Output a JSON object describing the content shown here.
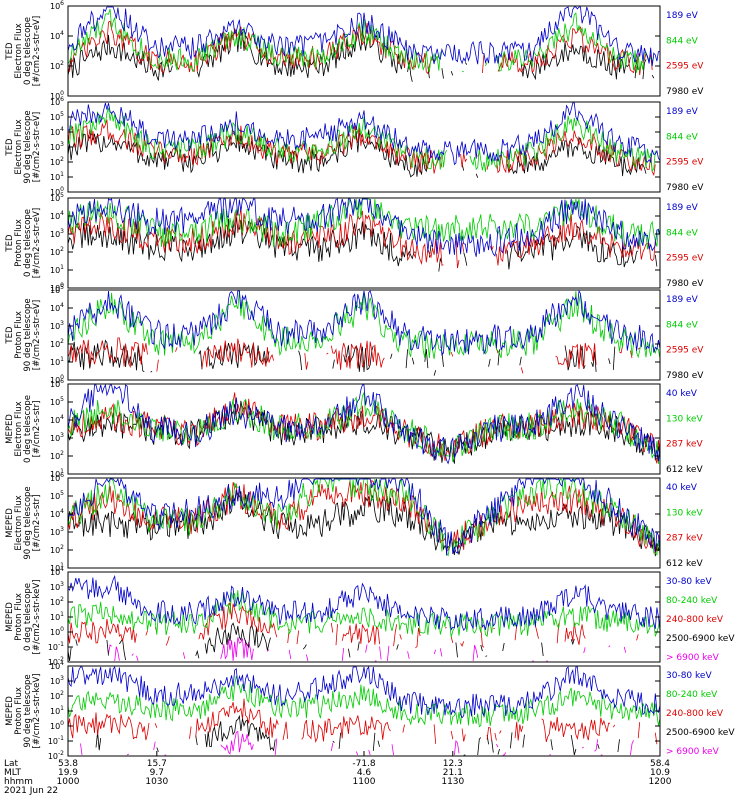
{
  "chart_data": {
    "type": "line",
    "date_label": "2021 Jun 22",
    "panels": [
      {
        "id": "ted-electron-0",
        "ylabel": [
          "TED",
          "Electron Flux",
          "0 deg telescope",
          "[#/cm2-s-str-eV]"
        ],
        "ylim_exp": [
          0,
          6
        ],
        "tick_exps": [
          0,
          2,
          4,
          6
        ],
        "log": true,
        "series": [
          {
            "name": "7980 eV",
            "color": "#000000",
            "base": 1.5,
            "activity": [
              0.3,
              2.2,
              0.4,
              0.3,
              2.6,
              0.5,
              0.6,
              2.8,
              0.3,
              0.2,
              0.2,
              0.4,
              2.0,
              0.4,
              0.2
            ]
          },
          {
            "name": "2595 eV",
            "color": "#dd0000",
            "base": 1.8,
            "activity": [
              0.5,
              2.9,
              0.6,
              0.6,
              2.6,
              0.8,
              0.9,
              2.9,
              0.5,
              0.3,
              0.3,
              0.6,
              2.6,
              0.6,
              0.3
            ]
          },
          {
            "name": "844 eV",
            "color": "#00cc00",
            "base": 1.9,
            "activity": [
              0.8,
              3.8,
              0.7,
              0.6,
              2.6,
              0.8,
              0.9,
              2.9,
              0.6,
              0.3,
              0.3,
              0.7,
              3.4,
              0.6,
              0.3
            ]
          },
          {
            "name": "189 eV",
            "color": "#0000cc",
            "base": 2.2,
            "activity": [
              1.4,
              4.6,
              1.2,
              1.2,
              2.9,
              1.3,
              1.5,
              3.3,
              1.0,
              0.6,
              0.8,
              1.0,
              4.6,
              1.0,
              0.5
            ]
          }
        ]
      },
      {
        "id": "ted-electron-90",
        "ylabel": [
          "TED",
          "Electron Flux",
          "90 deg telescope",
          "[#/cm2-s-str-eV]"
        ],
        "ylim_exp": [
          0,
          6
        ],
        "tick_exps": [
          0,
          1,
          2,
          3,
          4,
          5,
          6
        ],
        "log": true,
        "series": [
          {
            "name": "7980 eV",
            "color": "#000000",
            "base": 1.3,
            "activity": [
              1.8,
              2.6,
              1.0,
              0.9,
              2.4,
              0.8,
              0.9,
              2.7,
              0.5,
              0.2,
              0.2,
              0.6,
              2.2,
              0.7,
              0.2
            ]
          },
          {
            "name": "2595 eV",
            "color": "#dd0000",
            "base": 1.6,
            "activity": [
              2.2,
              3.0,
              1.2,
              1.1,
              2.6,
              1.0,
              1.1,
              2.8,
              0.7,
              0.3,
              0.3,
              0.8,
              2.7,
              0.9,
              0.3
            ]
          },
          {
            "name": "844 eV",
            "color": "#00cc00",
            "base": 1.8,
            "activity": [
              2.4,
              3.8,
              1.3,
              1.2,
              2.6,
              1.1,
              1.2,
              2.9,
              0.8,
              0.3,
              0.4,
              0.9,
              3.4,
              0.9,
              0.3
            ]
          },
          {
            "name": "189 eV",
            "color": "#0000cc",
            "base": 2.1,
            "activity": [
              2.8,
              4.2,
              1.8,
              1.6,
              3.0,
              1.6,
              1.9,
              3.3,
              1.2,
              0.6,
              0.8,
              1.2,
              4.2,
              1.2,
              0.5
            ]
          }
        ]
      },
      {
        "id": "ted-proton-0",
        "ylabel": [
          "TED",
          "Proton Flux",
          "0 deg telescope",
          "[#/cm2-s-str-eV]"
        ],
        "ylim_exp": [
          0,
          5
        ],
        "tick_exps": [
          0,
          1,
          2,
          3,
          4,
          5
        ],
        "log": true,
        "series": [
          {
            "name": "7980 eV",
            "color": "#000000",
            "base": 1.4,
            "activity": [
              1.6,
              1.8,
              1.0,
              1.0,
              2.2,
              1.0,
              1.0,
              2.0,
              0.4,
              0.2,
              0.2,
              0.6,
              1.6,
              0.5,
              0.2
            ]
          },
          {
            "name": "2595 eV",
            "color": "#dd0000",
            "base": 1.6,
            "activity": [
              1.9,
              2.2,
              1.3,
              1.2,
              2.6,
              1.2,
              1.3,
              2.4,
              0.6,
              0.3,
              0.3,
              0.8,
              2.2,
              0.7,
              0.3
            ]
          },
          {
            "name": "844 eV",
            "color": "#00cc00",
            "base": 1.8,
            "activity": [
              2.2,
              3.0,
              1.5,
              1.3,
              2.6,
              1.3,
              2.2,
              3.5,
              1.8,
              1.7,
              1.8,
              2.0,
              3.2,
              1.6,
              1.2
            ]
          },
          {
            "name": "189 eV",
            "color": "#0000cc",
            "base": 2.0,
            "activity": [
              2.5,
              3.0,
              2.0,
              2.0,
              3.3,
              2.0,
              2.2,
              3.6,
              1.0,
              0.6,
              0.6,
              1.2,
              3.1,
              1.2,
              0.6
            ]
          }
        ]
      },
      {
        "id": "ted-proton-90",
        "ylabel": [
          "TED",
          "Proton Flux",
          "90 deg telescope",
          "[#/cm2-s-str-eV]"
        ],
        "ylim_exp": [
          0,
          5
        ],
        "tick_exps": [
          0,
          1,
          2,
          3,
          4,
          5
        ],
        "log": true,
        "series": [
          {
            "name": "7980 eV",
            "color": "#000000",
            "base": 0.9,
            "activity": [
              0.5,
              0.6,
              0.3,
              0.3,
              0.5,
              0.3,
              0.3,
              0.4,
              0.2,
              0.1,
              0.1,
              0.2,
              0.4,
              0.2,
              0.1
            ]
          },
          {
            "name": "2595 eV",
            "color": "#dd0000",
            "base": 1.0,
            "activity": [
              0.6,
              0.8,
              0.3,
              0.3,
              0.6,
              0.3,
              0.3,
              0.5,
              0.2,
              0.1,
              0.1,
              0.2,
              0.5,
              0.2,
              0.1
            ]
          },
          {
            "name": "844 eV",
            "color": "#00cc00",
            "base": 1.3,
            "activity": [
              1.0,
              3.6,
              1.0,
              1.0,
              3.6,
              1.0,
              1.2,
              3.3,
              0.8,
              0.6,
              0.8,
              1.0,
              3.4,
              1.0,
              0.6
            ]
          },
          {
            "name": "189 eV",
            "color": "#0000cc",
            "base": 1.5,
            "activity": [
              1.2,
              3.6,
              1.2,
              1.2,
              3.6,
              1.2,
              1.4,
              3.6,
              1.0,
              0.7,
              0.9,
              1.2,
              3.6,
              1.2,
              0.7
            ]
          }
        ]
      },
      {
        "id": "meped-electron-0",
        "ylabel": [
          "MEPED",
          "Electron Flux",
          "0 deg telescope",
          "[#/cm2-s-str]"
        ],
        "ylim_exp": [
          1,
          6
        ],
        "tick_exps": [
          1,
          2,
          3,
          4,
          5,
          6
        ],
        "log": true,
        "series": [
          {
            "name": "612 keV",
            "color": "#000000",
            "base": 1.8,
            "activity": [
              2.0,
              2.2,
              1.9,
              1.6,
              3.2,
              1.8,
              2.0,
              2.4,
              1.6,
              0.4,
              1.8,
              2.0,
              2.4,
              2.0,
              0.4
            ]
          },
          {
            "name": "287 keV",
            "color": "#dd0000",
            "base": 1.9,
            "activity": [
              2.1,
              2.6,
              2.0,
              1.6,
              3.5,
              1.9,
              2.1,
              2.8,
              1.7,
              0.4,
              1.9,
              2.1,
              2.8,
              2.1,
              0.4
            ]
          },
          {
            "name": "130 keV",
            "color": "#00cc00",
            "base": 1.9,
            "activity": [
              2.1,
              3.2,
              2.0,
              1.6,
              3.3,
              1.9,
              2.1,
              3.4,
              1.8,
              0.4,
              1.9,
              2.1,
              3.4,
              2.2,
              0.4
            ]
          },
          {
            "name": "40 keV",
            "color": "#0000cc",
            "base": 1.8,
            "activity": [
              2.2,
              5.4,
              2.0,
              1.7,
              3.2,
              2.0,
              2.2,
              4.3,
              1.8,
              0.4,
              2.0,
              2.2,
              4.4,
              2.2,
              0.4
            ]
          }
        ]
      },
      {
        "id": "meped-electron-90",
        "ylabel": [
          "MEPED",
          "Electron Flux",
          "90 deg telescope",
          "[#/cm2-s-str]"
        ],
        "ylim_exp": [
          1,
          6
        ],
        "tick_exps": [
          1,
          2,
          3,
          4,
          5,
          6
        ],
        "log": true,
        "series": [
          {
            "name": "612 keV",
            "color": "#000000",
            "base": 1.8,
            "activity": [
              2.0,
              2.0,
              1.8,
              1.8,
              3.4,
              1.8,
              2.0,
              3.0,
              2.6,
              0.4,
              2.0,
              2.2,
              2.6,
              2.0,
              0.4
            ]
          },
          {
            "name": "287 keV",
            "color": "#dd0000",
            "base": 1.9,
            "activity": [
              2.2,
              3.4,
              2.0,
              2.0,
              3.8,
              2.0,
              3.6,
              3.8,
              3.4,
              0.4,
              2.2,
              3.4,
              3.4,
              2.2,
              0.4
            ]
          },
          {
            "name": "130 keV",
            "color": "#00cc00",
            "base": 1.9,
            "activity": [
              2.2,
              4.0,
              2.0,
              2.0,
              3.8,
              2.2,
              4.6,
              4.4,
              3.8,
              0.4,
              2.2,
              4.0,
              4.0,
              2.4,
              0.4
            ]
          },
          {
            "name": "40 keV",
            "color": "#0000cc",
            "base": 1.9,
            "activity": [
              2.4,
              5.2,
              2.2,
              2.6,
              3.8,
              3.4,
              5.6,
              5.2,
              4.6,
              0.4,
              2.4,
              5.2,
              5.2,
              2.8,
              0.4
            ]
          }
        ]
      },
      {
        "id": "meped-proton-0",
        "ylabel": [
          "MEPED",
          "Proton Flux",
          "0 deg telescope",
          "[#/cm2-s-str-keV]"
        ],
        "ylim_exp": [
          -2,
          4
        ],
        "tick_exps": [
          -2,
          -1,
          0,
          1,
          2,
          3,
          4
        ],
        "log": true,
        "series": [
          {
            "name": "> 6900 keV",
            "color": "#ee00ee",
            "base": -1.6,
            "activity": [
              0.0,
              0.0,
              0.0,
              0.0,
              0.6,
              0.0,
              0.0,
              0.0,
              0.0,
              0.0,
              0.0,
              0.0,
              0.0,
              0.0,
              0.0
            ]
          },
          {
            "name": "2500-6900 keV",
            "color": "#000000",
            "base": -1.2,
            "activity": [
              0.0,
              0.0,
              0.0,
              0.0,
              1.6,
              0.0,
              0.0,
              0.0,
              0.0,
              0.0,
              0.0,
              0.0,
              0.0,
              0.0,
              0.0
            ]
          },
          {
            "name": "240-800 keV",
            "color": "#dd0000",
            "base": -0.4,
            "activity": [
              0.4,
              0.6,
              0.2,
              0.2,
              2.2,
              0.2,
              0.2,
              0.5,
              0.1,
              0.1,
              0.1,
              0.2,
              0.4,
              0.2,
              0.1
            ]
          },
          {
            "name": "80-240 keV",
            "color": "#00cc00",
            "base": 0.1,
            "activity": [
              1.0,
              1.4,
              0.6,
              0.5,
              2.3,
              0.5,
              0.6,
              1.2,
              0.5,
              0.4,
              0.4,
              0.5,
              1.2,
              0.6,
              0.4
            ]
          },
          {
            "name": "30-80 keV",
            "color": "#0000cc",
            "base": 0.2,
            "activity": [
              3.2,
              3.4,
              1.4,
              1.2,
              2.6,
              1.2,
              1.4,
              3.0,
              0.9,
              0.8,
              0.8,
              1.0,
              3.0,
              1.2,
              0.8
            ]
          }
        ]
      },
      {
        "id": "meped-proton-90",
        "ylabel": [
          "MEPED",
          "Proton Flux",
          "90 deg telescope",
          "[#/cm2-s-str-keV]"
        ],
        "ylim_exp": [
          -2,
          4
        ],
        "tick_exps": [
          -2,
          -1,
          0,
          1,
          2,
          3,
          4
        ],
        "log": true,
        "series": [
          {
            "name": "> 6900 keV",
            "color": "#ee00ee",
            "base": -1.6,
            "activity": [
              0.0,
              0.0,
              0.0,
              0.0,
              0.6,
              0.0,
              0.0,
              0.0,
              0.0,
              0.0,
              0.0,
              0.0,
              0.0,
              0.0,
              0.0
            ]
          },
          {
            "name": "2500-6900 keV",
            "color": "#000000",
            "base": -1.2,
            "activity": [
              0.0,
              0.0,
              0.0,
              0.0,
              1.6,
              0.2,
              0.2,
              0.0,
              0.0,
              0.0,
              0.0,
              0.0,
              0.0,
              0.0,
              0.0
            ]
          },
          {
            "name": "240-800 keV",
            "color": "#dd0000",
            "base": -0.6,
            "activity": [
              0.6,
              1.0,
              0.3,
              0.3,
              2.4,
              0.3,
              0.4,
              0.8,
              0.1,
              0.1,
              0.1,
              0.3,
              0.6,
              0.3,
              0.1
            ]
          },
          {
            "name": "80-240 keV",
            "color": "#00cc00",
            "base": 0.3,
            "activity": [
              1.2,
              1.8,
              0.9,
              0.9,
              2.7,
              1.0,
              1.2,
              2.2,
              0.6,
              0.5,
              0.5,
              0.8,
              1.8,
              0.8,
              0.5
            ]
          },
          {
            "name": "30-80 keV",
            "color": "#0000cc",
            "base": 0.5,
            "activity": [
              3.2,
              3.6,
              2.0,
              1.8,
              3.2,
              1.8,
              2.4,
              3.8,
              1.2,
              1.0,
              1.0,
              1.4,
              3.6,
              1.6,
              1.0
            ]
          }
        ]
      }
    ],
    "xaxis": {
      "row_labels": [
        "Lat",
        "MLT",
        "hhmm"
      ],
      "ticks": [
        {
          "t": 1000,
          "lat": "53.8",
          "mlt": "19.9",
          "hhmm": "1000"
        },
        {
          "t": 1030,
          "lat": "15.7",
          "mlt": "9.7",
          "hhmm": "1030"
        },
        {
          "t": 1100,
          "lat": "-71.8",
          "mlt": "4.6",
          "hhmm": "1100"
        },
        {
          "t": 1130,
          "lat": "12.3",
          "mlt": "21.1",
          "hhmm": "1130"
        },
        {
          "t": 1200,
          "lat": "58.4",
          "mlt": "10.9",
          "hhmm": "1200"
        }
      ],
      "range": [
        1000,
        1200
      ]
    }
  }
}
